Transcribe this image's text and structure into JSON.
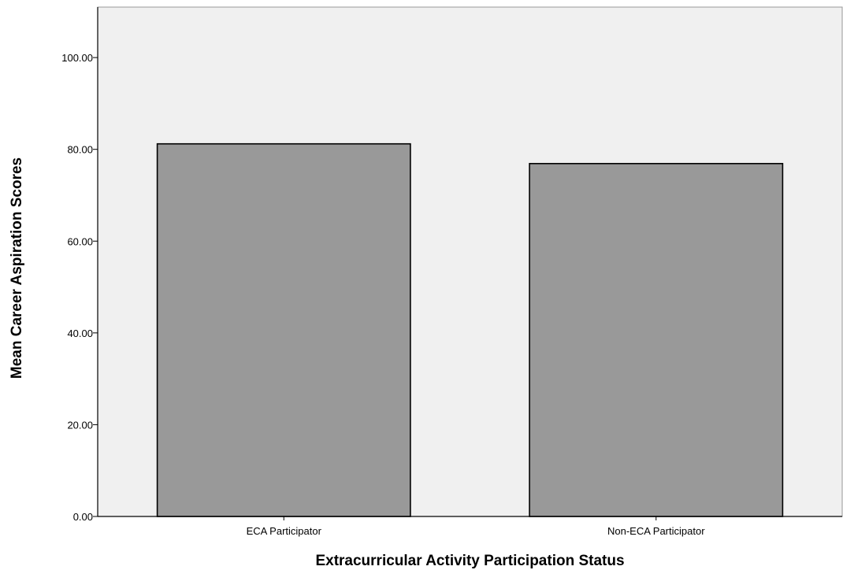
{
  "chart_data": {
    "type": "bar",
    "categories": [
      "ECA Participator",
      "Non-ECA Participator"
    ],
    "values": [
      81.2,
      76.9
    ],
    "xlabel": "Extracurricular Activity Participation Status",
    "ylabel": "Mean Career Aspiration Scores",
    "ylim": [
      0,
      111
    ],
    "yticks": [
      0,
      20,
      40,
      60,
      80,
      100
    ],
    "ytick_labels": [
      "0.00",
      "20.00",
      "40.00",
      "60.00",
      "80.00",
      "100.00"
    ],
    "grid": false,
    "legend": "none",
    "colors": {
      "plot_background": "#f0f0f0",
      "bar_fill": "#999999",
      "bar_stroke": "#000000",
      "axis": "#000000",
      "frame": "#999999"
    }
  }
}
